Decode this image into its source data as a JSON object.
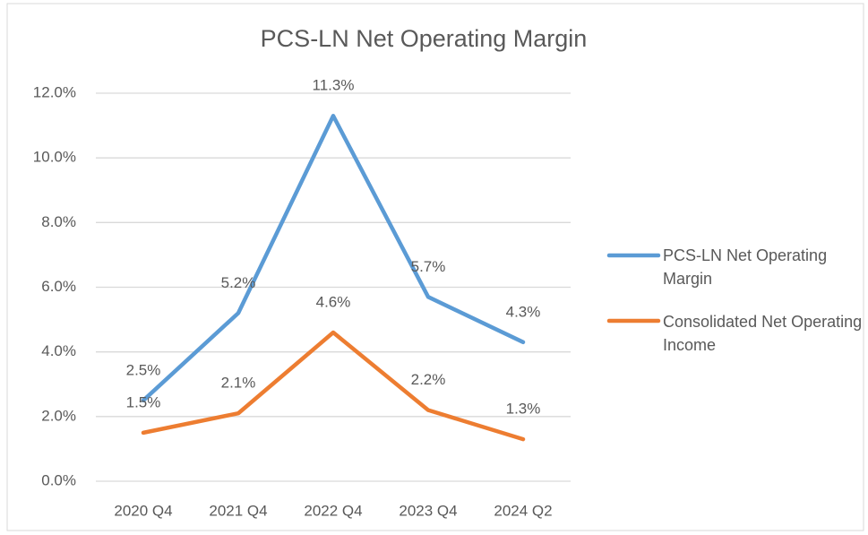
{
  "chart_data": {
    "type": "line",
    "title": "PCS-LN Net Operating Margin",
    "categories": [
      "2020 Q4",
      "2021 Q4",
      "2022 Q4",
      "2023 Q4",
      "2024 Q2"
    ],
    "series": [
      {
        "name": "PCS-LN Net Operating Margin",
        "color": "#5b9bd5",
        "values": [
          2.5,
          5.2,
          11.3,
          5.7,
          4.3
        ],
        "value_labels": [
          "2.5%",
          "5.2%",
          "11.3%",
          "5.7%",
          "4.3%"
        ]
      },
      {
        "name": "Consolidated Net Operating Income",
        "color": "#ed7d31",
        "values": [
          1.5,
          2.1,
          4.6,
          2.2,
          1.3
        ],
        "value_labels": [
          "1.5%",
          "2.1%",
          "4.6%",
          "2.2%",
          "1.3%"
        ]
      }
    ],
    "ylim": [
      0,
      12
    ],
    "yticks": [
      {
        "value": 0,
        "label": "0.0%"
      },
      {
        "value": 2,
        "label": "2.0%"
      },
      {
        "value": 4,
        "label": "4.0%"
      },
      {
        "value": 6,
        "label": "6.0%"
      },
      {
        "value": 8,
        "label": "8.0%"
      },
      {
        "value": 10,
        "label": "10.0%"
      },
      {
        "value": 12,
        "label": "12.0%"
      }
    ],
    "grid": true,
    "legend": "right"
  }
}
